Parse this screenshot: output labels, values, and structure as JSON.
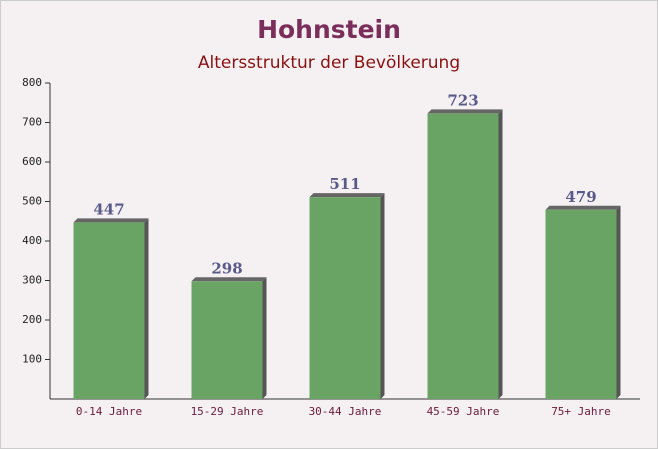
{
  "chart_data": {
    "type": "bar",
    "title": "Hohnstein",
    "subtitle": "Altersstruktur der Bevölkerung",
    "categories": [
      "0-14 Jahre",
      "15-29 Jahre",
      "30-44 Jahre",
      "45-59 Jahre",
      "75+ Jahre"
    ],
    "values": [
      447,
      298,
      511,
      723,
      479
    ],
    "color": "#6aa464",
    "ylim": [
      0,
      800
    ],
    "yticks": [
      100,
      200,
      300,
      400,
      500,
      600,
      700,
      800
    ],
    "grid": false
  }
}
